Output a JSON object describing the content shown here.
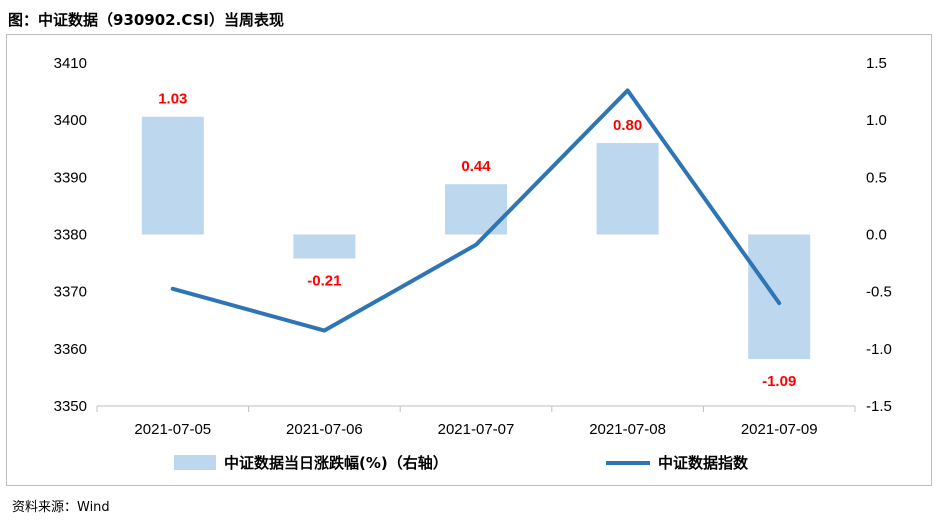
{
  "title": "图：中证数据（930902.CSI）当周表现",
  "source": "资料来源：Wind",
  "chart_data": {
    "type": "bar+line",
    "categories": [
      "2021-07-05",
      "2021-07-06",
      "2021-07-07",
      "2021-07-08",
      "2021-07-09"
    ],
    "bar_series": {
      "name": "中证数据当日涨跌幅(%)（右轴）",
      "axis": "right",
      "values": [
        1.03,
        -0.21,
        0.44,
        0.8,
        -1.09
      ],
      "labels": [
        "1.03",
        "-0.21",
        "0.44",
        "0.80",
        "-1.09"
      ],
      "color": "#bdd7ee"
    },
    "line_series": {
      "name": "中证数据指数",
      "axis": "left",
      "values": [
        3370.5,
        3363.2,
        3378.2,
        3405.2,
        3368.0
      ],
      "color": "#2e75b6"
    },
    "left_axis": {
      "min": 3350,
      "max": 3410,
      "ticks": [
        "3350",
        "3360",
        "3370",
        "3380",
        "3390",
        "3400",
        "3410"
      ]
    },
    "right_axis": {
      "min": -1.5,
      "max": 1.5,
      "ticks": [
        "-1.5",
        "-1.0",
        "-0.5",
        "0.0",
        "0.5",
        "1.0",
        "1.5"
      ]
    },
    "grid": false,
    "legend_position": "bottom"
  }
}
